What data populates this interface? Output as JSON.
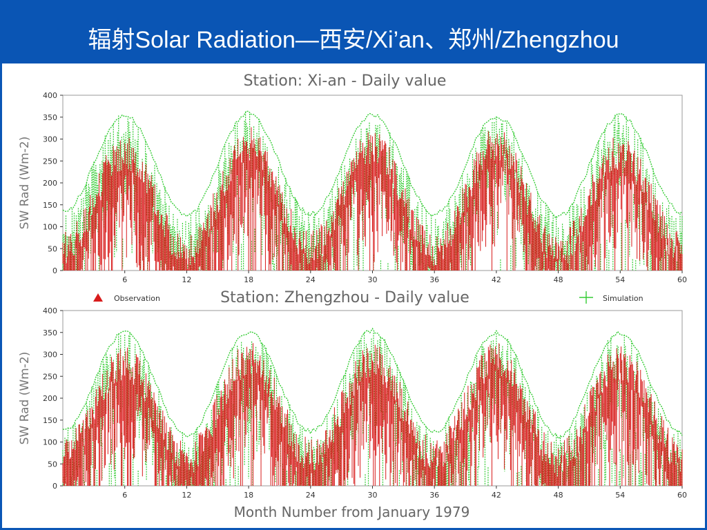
{
  "slide": {
    "title": "辐射Solar Radiation—西安/Xi’an、郑州/Zhengzhou"
  },
  "legend": {
    "observation_label": "Observation",
    "simulation_label": "Simulation"
  },
  "colors": {
    "observation": "#d81b1b",
    "simulation": "#33cc33",
    "title_bar": "#0a55b4",
    "axis": "#333333"
  },
  "chart_data": [
    {
      "type": "line",
      "title": "Station: Xi-an - Daily value",
      "xlabel": "",
      "ylabel": "SW Rad (Wm-2)",
      "xlim": [
        0,
        60
      ],
      "ylim": [
        0,
        400
      ],
      "x_ticks": [
        6,
        12,
        18,
        24,
        30,
        36,
        42,
        48,
        54,
        60
      ],
      "x_tick_labels": [
        "6",
        "12",
        "18",
        "24",
        "30",
        "36",
        "42",
        "48",
        "54",
        "60"
      ],
      "y_ticks": [
        0,
        50,
        100,
        150,
        200,
        250,
        300,
        350,
        400
      ],
      "grid": false,
      "series": [
        {
          "name": "Observation",
          "style": "vertical bars (daily)",
          "monthly_peak_approx": {
            "x": [
              6,
              18,
              30,
              42,
              54
            ],
            "y": [
              310,
              330,
              320,
              330,
              310
            ]
          },
          "monthly_trough_approx": {
            "x": [
              0,
              12,
              24,
              36,
              48,
              60
            ],
            "y": [
              90,
              80,
              90,
              90,
              80,
              90
            ]
          }
        },
        {
          "name": "Simulation",
          "style": "dotted envelope (daily)",
          "monthly_peak_approx": {
            "x": [
              6,
              18,
              30,
              42,
              54
            ],
            "y": [
              360,
              365,
              360,
              358,
              360
            ]
          },
          "monthly_trough_approx": {
            "x": [
              0,
              12,
              24,
              36,
              48,
              60
            ],
            "y": [
              140,
              130,
              135,
              135,
              130,
              140
            ]
          }
        }
      ]
    },
    {
      "type": "line",
      "title": "Station: Zhengzhou - Daily value",
      "xlabel": "Month Number from January 1979",
      "ylabel": "SW Rad (Wm-2)",
      "xlim": [
        0,
        60
      ],
      "ylim": [
        0,
        400
      ],
      "x_ticks": [
        6,
        12,
        18,
        24,
        30,
        36,
        42,
        48,
        54,
        60
      ],
      "x_tick_labels": [
        "6",
        "12",
        "18",
        "24",
        "30",
        "36",
        "42",
        "48",
        "54",
        "60"
      ],
      "y_ticks": [
        0,
        50,
        100,
        150,
        200,
        250,
        300,
        350,
        400
      ],
      "grid": false,
      "series": [
        {
          "name": "Observation",
          "style": "vertical bars (daily)",
          "monthly_peak_approx": {
            "x": [
              6,
              18,
              30,
              42,
              54
            ],
            "y": [
              320,
              330,
              325,
              330,
              320
            ]
          },
          "monthly_trough_approx": {
            "x": [
              0,
              12,
              24,
              36,
              48,
              60
            ],
            "y": [
              110,
              100,
              110,
              110,
              100,
              110
            ]
          }
        },
        {
          "name": "Simulation",
          "style": "dotted envelope (daily)",
          "monthly_peak_approx": {
            "x": [
              6,
              18,
              30,
              42,
              54
            ],
            "y": [
              355,
              358,
              360,
              355,
              355
            ]
          },
          "monthly_trough_approx": {
            "x": [
              0,
              12,
              24,
              36,
              48,
              60
            ],
            "y": [
              130,
              120,
              130,
              130,
              120,
              125
            ]
          }
        }
      ]
    }
  ]
}
